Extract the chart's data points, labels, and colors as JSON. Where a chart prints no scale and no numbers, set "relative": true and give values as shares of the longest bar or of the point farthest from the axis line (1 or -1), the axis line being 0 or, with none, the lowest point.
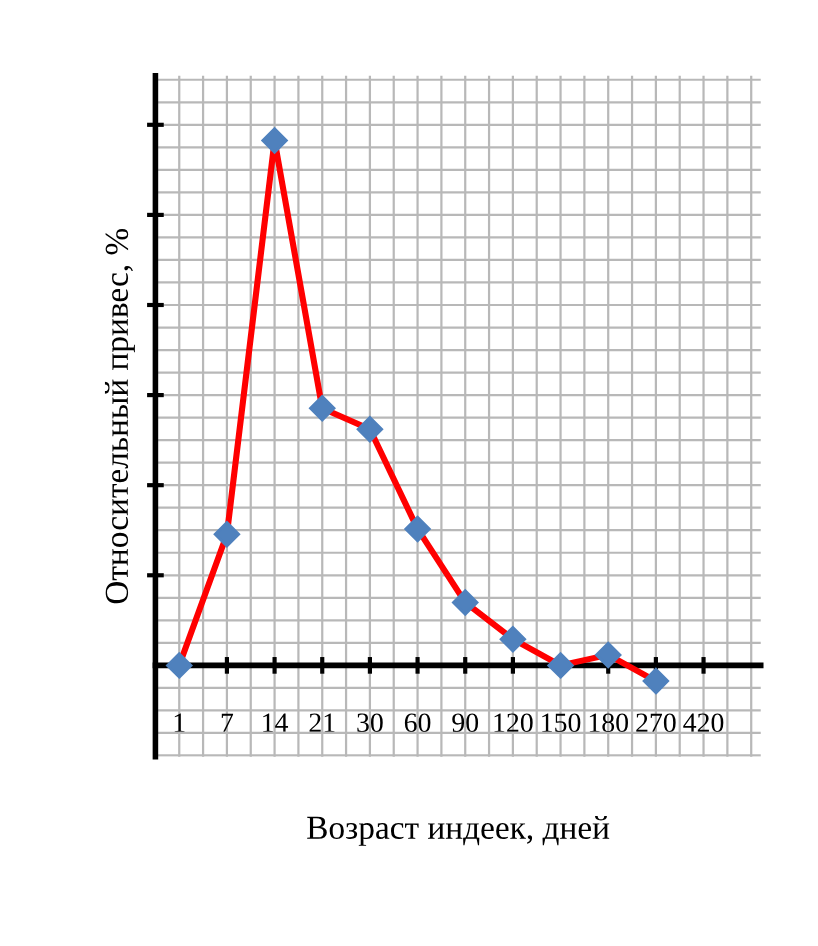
{
  "chart_data": {
    "type": "line",
    "relative": true,
    "xlabel": "Возраст индеек, дней",
    "ylabel": "Относительный привес, %",
    "categories": [
      "1",
      "7",
      "14",
      "21",
      "30",
      "60",
      "90",
      "120",
      "150",
      "180",
      "270",
      "420"
    ],
    "series": [
      {
        "color": "#ff0000",
        "values": [
          0,
          0.25,
          1,
          0.49,
          0.45,
          0.26,
          0.12,
          0.05,
          0,
          0.02,
          -0.03,
          null
        ]
      }
    ],
    "marker": "diamond",
    "line_style": "solid",
    "grid": true
  }
}
